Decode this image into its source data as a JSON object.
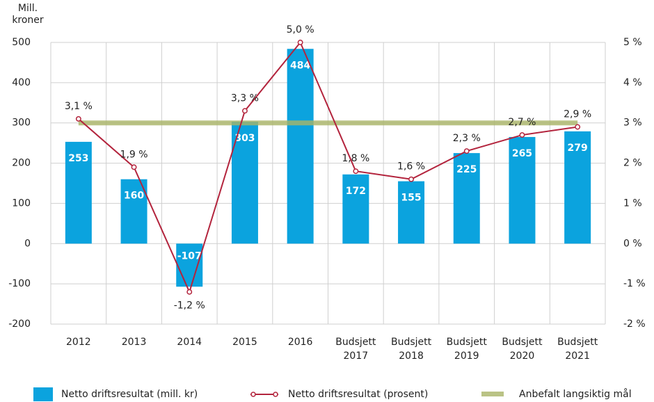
{
  "chart_data": {
    "type": "bar",
    "y_axis_label": "Mill. kroner",
    "categories": [
      "2012",
      "2013",
      "2014",
      "2015",
      "2016",
      "Budsjett 2017",
      "Budsjett 2018",
      "Budsjett 2019",
      "Budsjett 2020",
      "Budsjett 2021"
    ],
    "series": [
      {
        "name": "Netto driftsresultat (mill. kr)",
        "type": "bar",
        "color": "#0ba3de",
        "values": [
          253,
          160,
          -107,
          303,
          484,
          172,
          155,
          225,
          265,
          279
        ]
      },
      {
        "name": "Netto driftsresultat (prosent)",
        "type": "line",
        "axis": "y2",
        "color": "#b3243d",
        "values": [
          3.1,
          1.9,
          -1.2,
          3.3,
          5.0,
          1.8,
          1.6,
          2.3,
          2.7,
          2.9
        ],
        "value_labels": [
          "3,1 %",
          "1,9 %",
          "-1,2 %",
          "3,3 %",
          "5,0 %",
          "1,8 %",
          "1,6 %",
          "2,3 %",
          "2,7 %",
          "2,9 %"
        ]
      },
      {
        "name": "Anbefalt langsiktig mål",
        "type": "target",
        "color": "#a9b466",
        "value": 300
      }
    ],
    "ylim": [
      -200,
      500
    ],
    "yticks": [
      -200,
      -100,
      0,
      100,
      200,
      300,
      400,
      500
    ],
    "y2lim": [
      -2,
      5
    ],
    "y2ticks": [
      {
        "value": -2,
        "label": "-2 %"
      },
      {
        "value": -1,
        "label": "-1 %"
      },
      {
        "value": 0,
        "label": "0 %"
      },
      {
        "value": 1,
        "label": "1 %"
      },
      {
        "value": 2,
        "label": "2 %"
      },
      {
        "value": 3,
        "label": "3 %"
      },
      {
        "value": 4,
        "label": "4 %"
      },
      {
        "value": 5,
        "label": "5 %"
      }
    ],
    "grid": true,
    "legend": "bottom"
  }
}
